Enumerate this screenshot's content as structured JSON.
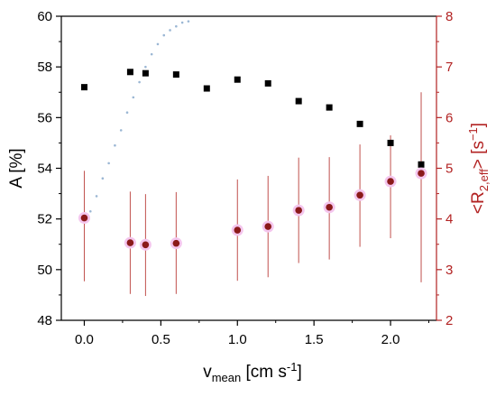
{
  "chart_data": {
    "type": "scatter",
    "title": "",
    "xlabel": {
      "main": "v",
      "sub": "mean",
      "rest": " [cm s",
      "sup": "-1",
      "close": "]"
    },
    "ylabel_left": "A [%]",
    "ylabel_right": {
      "pre": "<R",
      "sub": "2,eff",
      "mid": "> [s",
      "sup": "−1",
      "close": "]"
    },
    "xlim": [
      -0.15,
      2.3
    ],
    "ylim_left": [
      48,
      60
    ],
    "ylim_right": [
      2,
      8
    ],
    "xticks": [
      "0.0",
      "0.5",
      "1.0",
      "1.5",
      "2.0"
    ],
    "xtick_values": [
      0,
      0.5,
      1.0,
      1.5,
      2.0
    ],
    "yticks_left": [
      "48",
      "50",
      "52",
      "54",
      "56",
      "58",
      "60"
    ],
    "ytick_left_values": [
      48,
      50,
      52,
      54,
      56,
      58,
      60
    ],
    "yticks_right": [
      "2",
      "3",
      "4",
      "5",
      "6",
      "7",
      "8"
    ],
    "ytick_right_values": [
      2,
      3,
      4,
      5,
      6,
      7,
      8
    ],
    "colors": {
      "series_a": "#000000",
      "series_r2": "#8B1A1A",
      "errorbar": "#C0504D",
      "right_axis": "#B22222",
      "halo": "#F4C6EE",
      "dotted": "#9BB7D4"
    },
    "series": [
      {
        "axis": "left",
        "marker": "square",
        "x": [
          0.0,
          0.3,
          0.4,
          0.6,
          0.8,
          1.0,
          1.2,
          1.4,
          1.6,
          1.8,
          2.0,
          2.2
        ],
        "y": [
          57.2,
          57.8,
          57.75,
          57.7,
          57.15,
          57.5,
          57.35,
          56.65,
          56.4,
          55.75,
          55.0,
          54.15
        ]
      },
      {
        "axis": "right",
        "marker": "circle",
        "x": [
          0.0,
          0.3,
          0.4,
          0.6,
          1.0,
          1.2,
          1.4,
          1.6,
          1.8,
          2.0,
          2.2
        ],
        "y": [
          4.02,
          3.53,
          3.49,
          3.52,
          3.78,
          3.85,
          4.17,
          4.23,
          4.47,
          4.74,
          4.9
        ],
        "err_low": [
          2.77,
          2.52,
          2.48,
          2.52,
          2.78,
          2.85,
          3.13,
          3.2,
          3.45,
          3.62,
          2.75
        ],
        "err_high": [
          4.95,
          4.54,
          4.49,
          4.53,
          4.78,
          4.85,
          5.21,
          5.22,
          5.47,
          5.65,
          6.5
        ]
      }
    ],
    "dotted_curve": {
      "x": [
        0.04,
        0.08,
        0.12,
        0.16,
        0.2,
        0.24,
        0.28,
        0.32,
        0.36,
        0.4,
        0.44,
        0.48,
        0.52,
        0.56,
        0.6,
        0.64,
        0.68
      ],
      "y": [
        52.3,
        52.9,
        53.6,
        54.2,
        54.9,
        55.5,
        56.2,
        56.8,
        57.4,
        58.0,
        58.5,
        58.9,
        59.25,
        59.45,
        59.6,
        59.75,
        59.8
      ]
    }
  }
}
